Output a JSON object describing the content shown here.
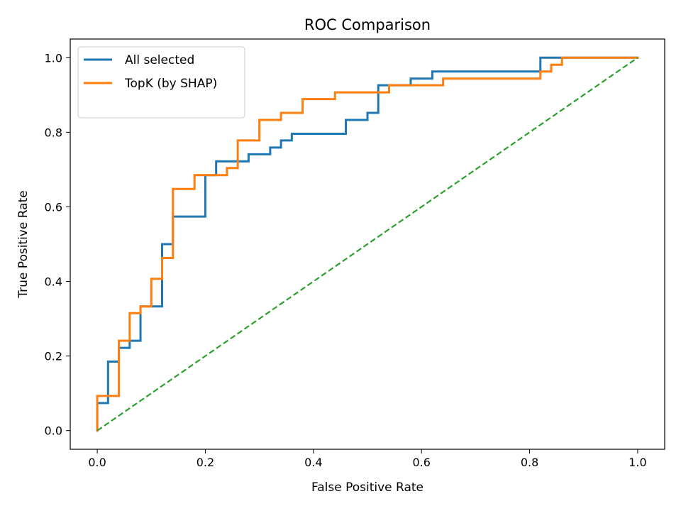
{
  "chart_data": {
    "type": "line",
    "title": "ROC Comparison",
    "xlabel": "False Positive Rate",
    "ylabel": "True Positive Rate",
    "xlim": [
      -0.05,
      1.05
    ],
    "ylim": [
      -0.05,
      1.05
    ],
    "xticks": [
      "0.0",
      "0.2",
      "0.4",
      "0.6",
      "0.8",
      "1.0"
    ],
    "yticks": [
      "0.0",
      "0.2",
      "0.4",
      "0.6",
      "0.8",
      "1.0"
    ],
    "grid": false,
    "legend_position": "upper-left",
    "series": [
      {
        "name": "All selected",
        "color": "#1f77b4",
        "style": "step",
        "points": [
          [
            0,
            0
          ],
          [
            0,
            0.074
          ],
          [
            0.02,
            0.074
          ],
          [
            0.02,
            0.185
          ],
          [
            0.04,
            0.185
          ],
          [
            0.04,
            0.222
          ],
          [
            0.06,
            0.222
          ],
          [
            0.06,
            0.241
          ],
          [
            0.08,
            0.241
          ],
          [
            0.08,
            0.333
          ],
          [
            0.12,
            0.333
          ],
          [
            0.12,
            0.5
          ],
          [
            0.14,
            0.5
          ],
          [
            0.14,
            0.574
          ],
          [
            0.2,
            0.574
          ],
          [
            0.2,
            0.685
          ],
          [
            0.22,
            0.685
          ],
          [
            0.22,
            0.722
          ],
          [
            0.28,
            0.722
          ],
          [
            0.28,
            0.741
          ],
          [
            0.32,
            0.741
          ],
          [
            0.32,
            0.759
          ],
          [
            0.34,
            0.759
          ],
          [
            0.34,
            0.778
          ],
          [
            0.36,
            0.778
          ],
          [
            0.36,
            0.796
          ],
          [
            0.46,
            0.796
          ],
          [
            0.46,
            0.833
          ],
          [
            0.5,
            0.833
          ],
          [
            0.5,
            0.852
          ],
          [
            0.52,
            0.852
          ],
          [
            0.52,
            0.926
          ],
          [
            0.58,
            0.926
          ],
          [
            0.58,
            0.944
          ],
          [
            0.62,
            0.944
          ],
          [
            0.62,
            0.963
          ],
          [
            0.82,
            0.963
          ],
          [
            0.82,
            1.0
          ],
          [
            1.0,
            1.0
          ]
        ]
      },
      {
        "name": "TopK (by SHAP)",
        "color": "#ff7f0e",
        "style": "step",
        "points": [
          [
            0,
            0
          ],
          [
            0,
            0.093
          ],
          [
            0.04,
            0.093
          ],
          [
            0.04,
            0.241
          ],
          [
            0.06,
            0.241
          ],
          [
            0.06,
            0.315
          ],
          [
            0.08,
            0.315
          ],
          [
            0.08,
            0.333
          ],
          [
            0.1,
            0.333
          ],
          [
            0.1,
            0.407
          ],
          [
            0.12,
            0.407
          ],
          [
            0.12,
            0.463
          ],
          [
            0.14,
            0.463
          ],
          [
            0.14,
            0.648
          ],
          [
            0.18,
            0.648
          ],
          [
            0.18,
            0.685
          ],
          [
            0.24,
            0.685
          ],
          [
            0.24,
            0.704
          ],
          [
            0.26,
            0.704
          ],
          [
            0.26,
            0.778
          ],
          [
            0.3,
            0.778
          ],
          [
            0.3,
            0.833
          ],
          [
            0.34,
            0.833
          ],
          [
            0.34,
            0.852
          ],
          [
            0.38,
            0.852
          ],
          [
            0.38,
            0.889
          ],
          [
            0.44,
            0.889
          ],
          [
            0.44,
            0.907
          ],
          [
            0.54,
            0.907
          ],
          [
            0.54,
            0.926
          ],
          [
            0.64,
            0.926
          ],
          [
            0.64,
            0.944
          ],
          [
            0.82,
            0.944
          ],
          [
            0.82,
            0.963
          ],
          [
            0.84,
            0.963
          ],
          [
            0.84,
            0.981
          ],
          [
            0.86,
            0.981
          ],
          [
            0.86,
            1.0
          ],
          [
            1.0,
            1.0
          ]
        ]
      },
      {
        "name": "",
        "color": "#2ca02c",
        "style": "dashed",
        "points": [
          [
            0,
            0
          ],
          [
            1,
            1
          ]
        ]
      }
    ]
  }
}
